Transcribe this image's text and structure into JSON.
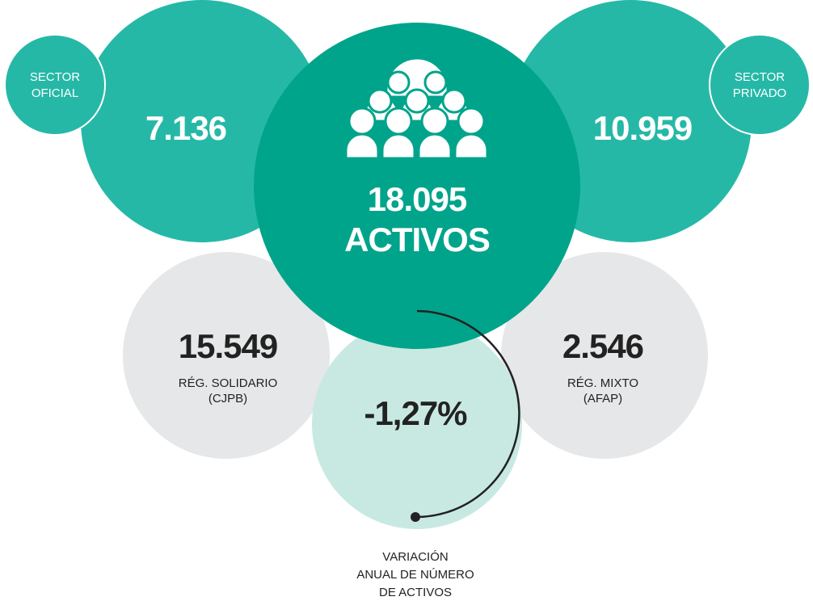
{
  "sector_oficial": {
    "label": [
      "SECTOR",
      "OFICIAL"
    ],
    "value": "7.136"
  },
  "sector_privado": {
    "label": [
      "SECTOR",
      "PRIVADO"
    ],
    "value": "10.959"
  },
  "total": {
    "value": "18.095",
    "label": "ACTIVOS"
  },
  "reg_solidario": {
    "value": "15.549",
    "label": [
      "RÉG. SOLIDARIO",
      "(CJPB)"
    ]
  },
  "reg_mixto": {
    "value": "2.546",
    "label": [
      "RÉG. MIXTO",
      "(AFAP)"
    ]
  },
  "variacion": {
    "value": "-1,27%",
    "label": [
      "VARIACIÓN",
      "ANUAL DE NÚMERO",
      "DE ACTIVOS"
    ]
  }
}
